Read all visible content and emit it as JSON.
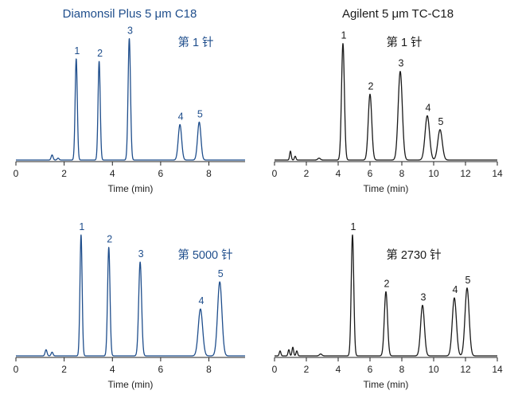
{
  "columns": [
    {
      "title": "Diamonsil Plus 5 μm C18",
      "color": "#1f4e8c"
    },
    {
      "title": "Agilent 5 μm TC-C18",
      "color": "#1a1a1a"
    }
  ],
  "chart_data": [
    {
      "type": "line",
      "column": "Diamonsil Plus 5 μm C18",
      "run_label": "第 1 针",
      "xlabel": "Time (min)",
      "xlim": [
        0,
        9.5
      ],
      "xticks": [
        0,
        2,
        4,
        6,
        8
      ],
      "ylim": [
        0,
        1
      ],
      "line_color": "#1f4e8c",
      "peaks": [
        {
          "label": "1",
          "x": 2.5,
          "height": 0.8,
          "width": 0.045
        },
        {
          "label": "2",
          "x": 3.45,
          "height": 0.78,
          "width": 0.045
        },
        {
          "label": "3",
          "x": 4.7,
          "height": 0.96,
          "width": 0.05
        },
        {
          "label": "4",
          "x": 6.8,
          "height": 0.28,
          "width": 0.07
        },
        {
          "label": "5",
          "x": 7.6,
          "height": 0.3,
          "width": 0.07
        }
      ],
      "minor_peaks": [
        {
          "x": 1.5,
          "height": 0.04,
          "width": 0.04
        },
        {
          "x": 1.75,
          "height": 0.015,
          "width": 0.04
        }
      ]
    },
    {
      "type": "line",
      "column": "Agilent 5 μm TC-C18",
      "run_label": "第 1 针",
      "xlabel": "Time (min)",
      "xlim": [
        0,
        14
      ],
      "xticks": [
        0,
        2,
        4,
        6,
        8,
        10,
        12,
        14
      ],
      "ylim": [
        0,
        1
      ],
      "line_color": "#1a1a1a",
      "peaks": [
        {
          "label": "1",
          "x": 4.3,
          "height": 0.92,
          "width": 0.09
        },
        {
          "label": "2",
          "x": 6.0,
          "height": 0.52,
          "width": 0.11
        },
        {
          "label": "3",
          "x": 7.9,
          "height": 0.7,
          "width": 0.13
        },
        {
          "label": "4",
          "x": 9.6,
          "height": 0.35,
          "width": 0.14
        },
        {
          "label": "5",
          "x": 10.4,
          "height": 0.24,
          "width": 0.14
        }
      ],
      "minor_peaks": [
        {
          "x": 1.0,
          "height": 0.07,
          "width": 0.05
        },
        {
          "x": 1.3,
          "height": 0.03,
          "width": 0.05
        },
        {
          "x": 2.8,
          "height": 0.015,
          "width": 0.08
        }
      ]
    },
    {
      "type": "line",
      "column": "Diamonsil Plus 5 μm C18",
      "run_label": "第 5000 针",
      "xlabel": "Time (min)",
      "xlim": [
        0,
        9.5
      ],
      "xticks": [
        0,
        2,
        4,
        6,
        8
      ],
      "ylim": [
        0,
        1
      ],
      "line_color": "#1f4e8c",
      "peaks": [
        {
          "label": "1",
          "x": 2.7,
          "height": 0.98,
          "width": 0.045
        },
        {
          "label": "2",
          "x": 3.85,
          "height": 0.88,
          "width": 0.05
        },
        {
          "label": "3",
          "x": 5.15,
          "height": 0.76,
          "width": 0.06
        },
        {
          "label": "4",
          "x": 7.65,
          "height": 0.38,
          "width": 0.09
        },
        {
          "label": "5",
          "x": 8.45,
          "height": 0.6,
          "width": 0.09
        }
      ],
      "minor_peaks": [
        {
          "x": 1.25,
          "height": 0.05,
          "width": 0.04
        },
        {
          "x": 1.5,
          "height": 0.03,
          "width": 0.04
        }
      ]
    },
    {
      "type": "line",
      "column": "Agilent 5 μm TC-C18",
      "run_label": "第 2730 针",
      "xlabel": "Time (min)",
      "xlim": [
        0,
        14
      ],
      "xticks": [
        0,
        2,
        4,
        6,
        8,
        10,
        12,
        14
      ],
      "ylim": [
        0,
        1
      ],
      "line_color": "#1a1a1a",
      "peaks": [
        {
          "label": "1",
          "x": 4.9,
          "height": 0.98,
          "width": 0.08
        },
        {
          "label": "2",
          "x": 7.0,
          "height": 0.52,
          "width": 0.1
        },
        {
          "label": "3",
          "x": 9.3,
          "height": 0.41,
          "width": 0.12
        },
        {
          "label": "4",
          "x": 11.3,
          "height": 0.47,
          "width": 0.13
        },
        {
          "label": "5",
          "x": 12.1,
          "height": 0.55,
          "width": 0.13
        }
      ],
      "minor_peaks": [
        {
          "x": 0.35,
          "height": 0.04,
          "width": 0.05
        },
        {
          "x": 0.9,
          "height": 0.05,
          "width": 0.05
        },
        {
          "x": 1.15,
          "height": 0.07,
          "width": 0.05
        },
        {
          "x": 1.4,
          "height": 0.04,
          "width": 0.05
        },
        {
          "x": 2.9,
          "height": 0.015,
          "width": 0.08
        }
      ]
    }
  ]
}
